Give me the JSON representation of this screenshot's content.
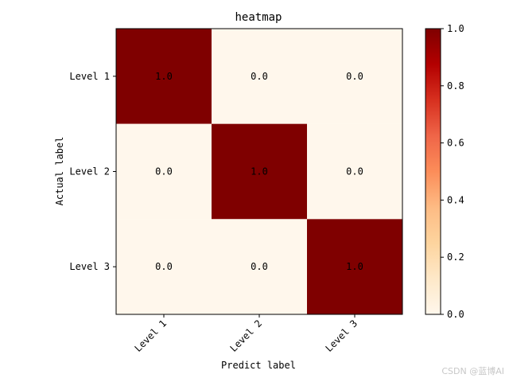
{
  "chart_data": {
    "type": "heatmap",
    "title": "heatmap",
    "xlabel": "Predict label",
    "ylabel": "Actual label",
    "x_categories": [
      "Level 1",
      "Level 2",
      "Level 3"
    ],
    "y_categories": [
      "Level 1",
      "Level 2",
      "Level 3"
    ],
    "values": [
      [
        1.0,
        0.0,
        0.0
      ],
      [
        0.0,
        1.0,
        0.0
      ],
      [
        0.0,
        0.0,
        1.0
      ]
    ],
    "cell_labels": [
      [
        "1.0",
        "0.0",
        "0.0"
      ],
      [
        "0.0",
        "1.0",
        "0.0"
      ],
      [
        "0.0",
        "0.0",
        "1.0"
      ]
    ],
    "colormap": "OrRd",
    "colorbar": {
      "range": [
        0.0,
        1.0
      ],
      "ticks": [
        "0.0",
        "0.2",
        "0.4",
        "0.6",
        "0.8",
        "1.0"
      ],
      "low_color": "#fff7ec",
      "high_color": "#7f0000"
    },
    "x_tick_rotation": 45
  },
  "watermark": "CSDN @蓝博AI"
}
